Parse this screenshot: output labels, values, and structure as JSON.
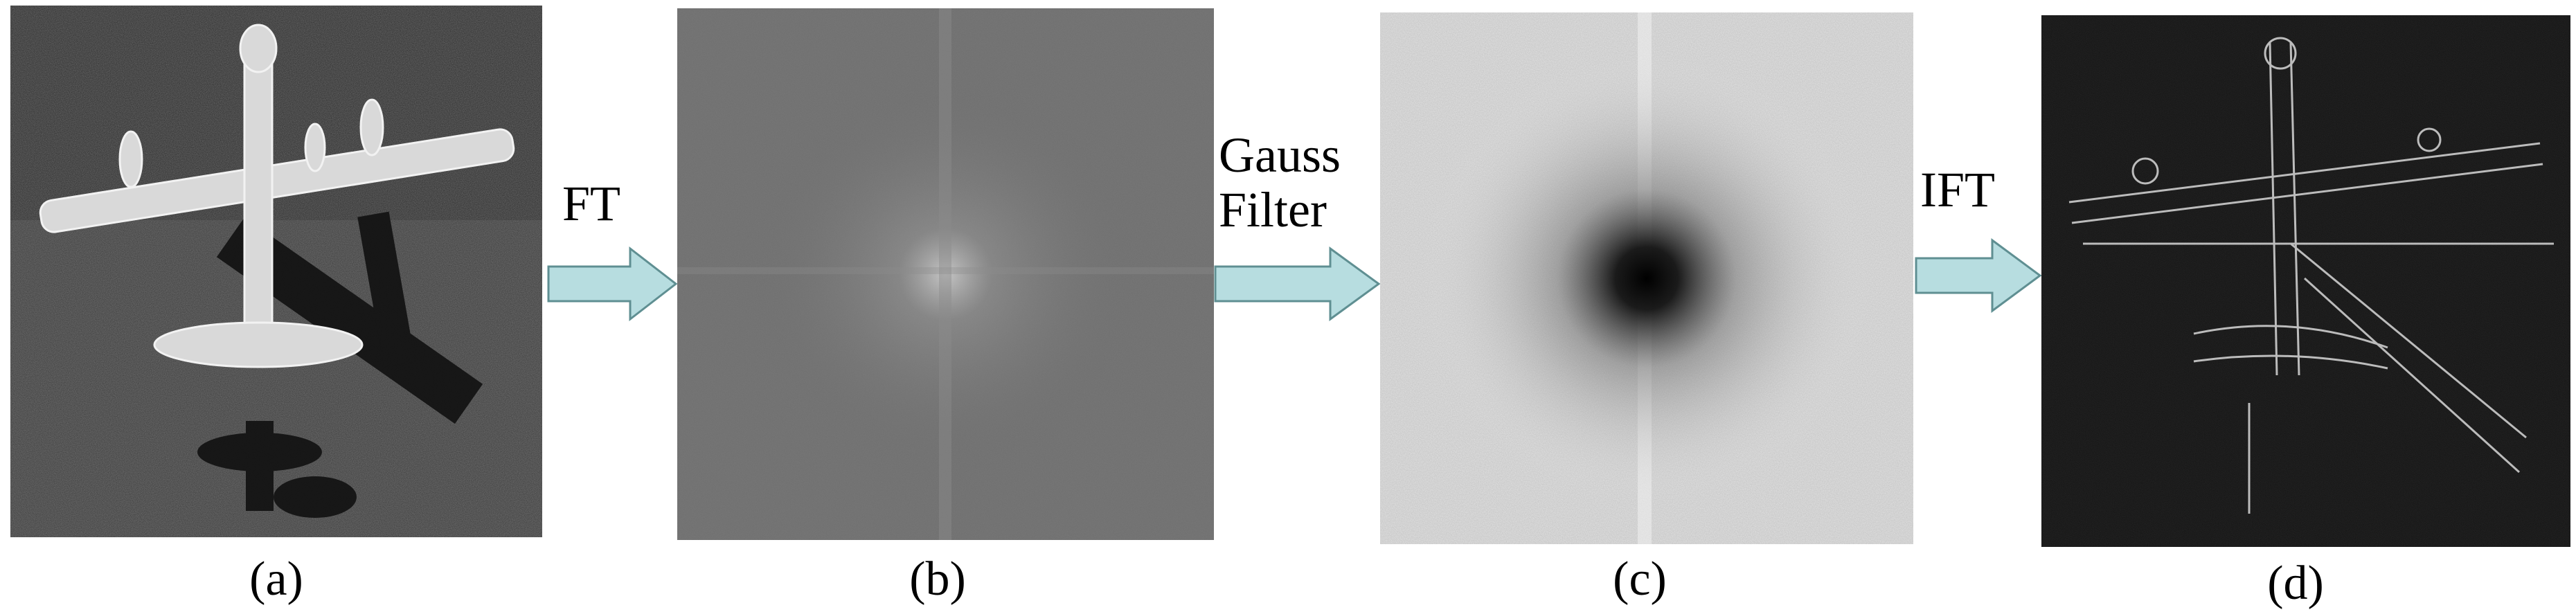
{
  "steps": [
    {
      "caption": "(a)"
    },
    {
      "caption": "(b)"
    },
    {
      "caption": "(c)"
    },
    {
      "caption": "(d)"
    }
  ],
  "operations": [
    {
      "label": "FT"
    },
    {
      "label_line1": "Gauss",
      "label_line2": "Filter"
    },
    {
      "label": "IFT"
    }
  ],
  "colors": {
    "arrow_fill": "#b7dde0",
    "arrow_stroke": "#5f8f92",
    "image_background_dark": "#111111",
    "spectrum_gray": "#6f6f6f",
    "filtered_spectrum_light": "#e4e4e4"
  }
}
